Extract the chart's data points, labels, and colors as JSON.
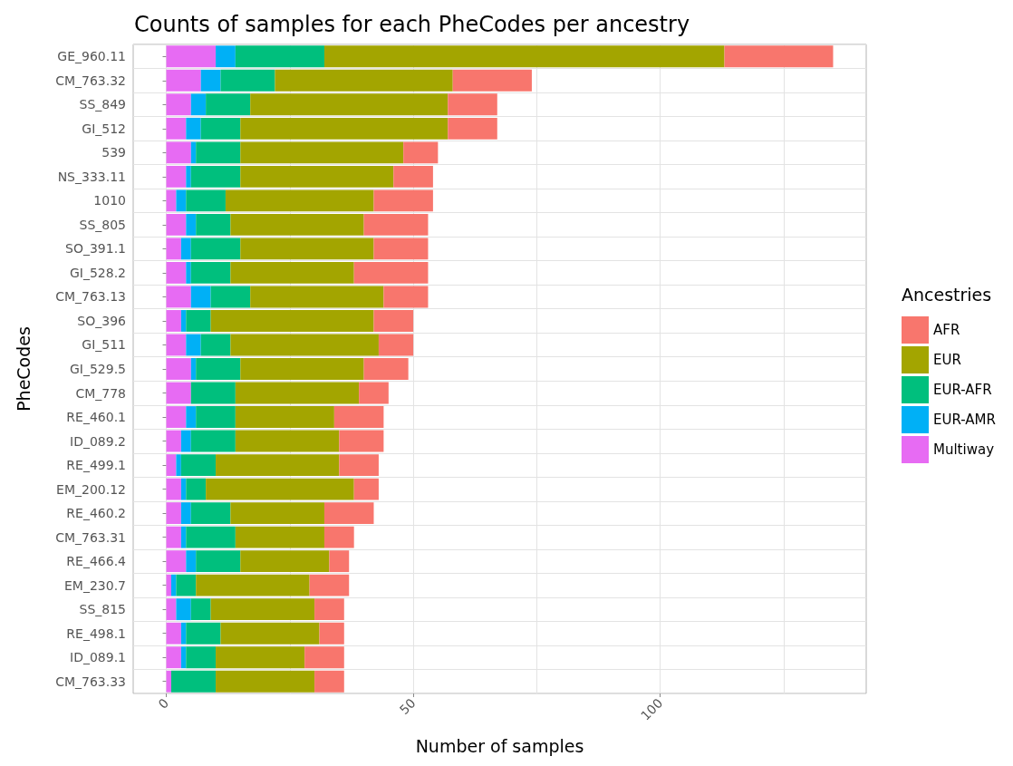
{
  "chart_data": {
    "type": "bar",
    "orientation": "horizontal",
    "stacked": true,
    "title": "Counts of samples for each PheCodes per ancestry",
    "xlabel": "Number of samples",
    "ylabel": "PheCodes",
    "legend_title": "Ancestries",
    "categories": [
      "GE_960.11",
      "CM_763.32",
      "SS_849",
      "GI_512",
      "539",
      "NS_333.11",
      "1010",
      "SS_805",
      "SO_391.1",
      "GI_528.2",
      "CM_763.13",
      "SO_396",
      "GI_511",
      "GI_529.5",
      "CM_778",
      "RE_460.1",
      "ID_089.2",
      "RE_499.1",
      "EM_200.12",
      "RE_460.2",
      "CM_763.31",
      "RE_466.4",
      "EM_230.7",
      "SS_815",
      "RE_498.1",
      "ID_089.1",
      "CM_763.33"
    ],
    "series": [
      {
        "name": "Multiway",
        "color": "#e76bf3",
        "values": [
          10,
          7,
          5,
          4,
          5,
          4,
          2,
          4,
          3,
          4,
          5,
          3,
          4,
          5,
          5,
          4,
          3,
          2,
          3,
          3,
          3,
          4,
          1,
          2,
          3,
          3,
          1
        ]
      },
      {
        "name": "EUR-AMR",
        "color": "#00b0f6",
        "values": [
          4,
          4,
          3,
          3,
          1,
          1,
          2,
          2,
          2,
          1,
          4,
          1,
          3,
          1,
          0,
          2,
          2,
          1,
          1,
          2,
          1,
          2,
          1,
          3,
          1,
          1,
          0
        ]
      },
      {
        "name": "EUR-AFR",
        "color": "#00bf7d",
        "values": [
          18,
          11,
          9,
          8,
          9,
          10,
          8,
          7,
          10,
          8,
          8,
          5,
          6,
          9,
          9,
          8,
          9,
          7,
          4,
          8,
          10,
          9,
          4,
          4,
          7,
          6,
          9
        ]
      },
      {
        "name": "EUR",
        "color": "#a3a500",
        "values": [
          81,
          36,
          40,
          42,
          33,
          31,
          30,
          27,
          27,
          25,
          27,
          33,
          30,
          25,
          25,
          20,
          21,
          25,
          30,
          19,
          18,
          18,
          23,
          21,
          20,
          18,
          20
        ]
      },
      {
        "name": "AFR",
        "color": "#f8766d",
        "values": [
          22,
          16,
          10,
          10,
          7,
          8,
          12,
          13,
          11,
          15,
          9,
          8,
          7,
          9,
          6,
          10,
          9,
          8,
          5,
          10,
          6,
          4,
          8,
          6,
          5,
          8,
          6
        ]
      }
    ],
    "xlim": [
      -6.7,
      141.7
    ],
    "xticks": [
      0,
      {
        "value": 25,
        "label": null
      },
      50,
      {
        "value": 75,
        "label": null
      },
      100,
      {
        "value": 125,
        "label": null
      }
    ],
    "grid": true,
    "legend": "right"
  }
}
